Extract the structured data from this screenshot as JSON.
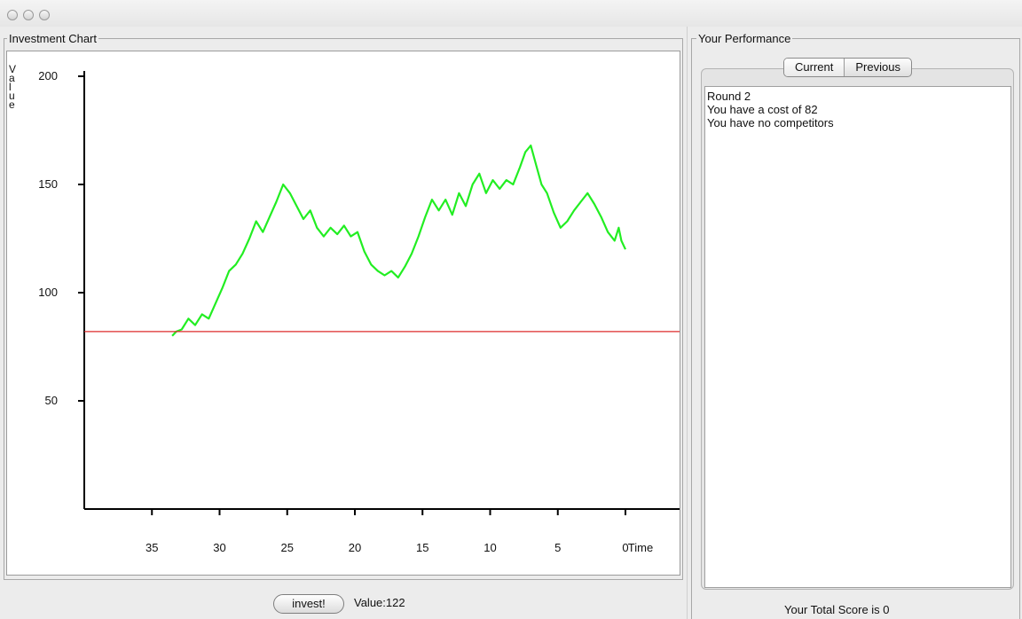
{
  "window": {
    "traffic_lights": [
      "close-light",
      "minimize-light",
      "zoom-light"
    ]
  },
  "chart_panel": {
    "title": "Investment Chart",
    "ylabel_letters": [
      "V",
      "a",
      "l",
      "u",
      "e"
    ],
    "xlabel": "Time"
  },
  "chart_data": {
    "type": "line",
    "title": "",
    "xlabel": "Time",
    "ylabel": "Value",
    "x_ticks": [
      35,
      30,
      25,
      20,
      15,
      10,
      5,
      0
    ],
    "y_ticks": [
      50,
      100,
      150,
      200
    ],
    "xlim": [
      40,
      -4
    ],
    "ylim": [
      0,
      200
    ],
    "series": [
      {
        "color": "#22ee22",
        "x": [
          33.5,
          33.2,
          32.8,
          32.3,
          31.8,
          31.3,
          30.8,
          30.3,
          29.8,
          29.3,
          28.8,
          28.3,
          27.8,
          27.3,
          26.8,
          26.3,
          25.8,
          25.3,
          24.8,
          24.3,
          23.8,
          23.3,
          22.8,
          22.3,
          21.8,
          21.3,
          20.8,
          20.3,
          19.8,
          19.3,
          18.8,
          18.3,
          17.8,
          17.3,
          16.8,
          16.3,
          15.8,
          15.3,
          14.8,
          14.3,
          13.8,
          13.3,
          12.8,
          12.3,
          11.8,
          11.3,
          10.8,
          10.3,
          9.8,
          9.3,
          8.8,
          8.3,
          7.8,
          7.4,
          7.0,
          6.6,
          6.2,
          5.8,
          5.3,
          4.8,
          4.3,
          3.8,
          3.3,
          2.8,
          2.3,
          1.8,
          1.3,
          0.8,
          0.5,
          0.3,
          0.0
        ],
        "values": [
          80,
          82,
          83,
          88,
          85,
          90,
          88,
          95,
          102,
          110,
          113,
          118,
          125,
          133,
          128,
          135,
          142,
          150,
          146,
          140,
          134,
          138,
          130,
          126,
          130,
          127,
          131,
          126,
          128,
          119,
          113,
          110,
          108,
          110,
          107,
          112,
          118,
          126,
          135,
          143,
          138,
          143,
          136,
          146,
          140,
          150,
          155,
          146,
          152,
          148,
          152,
          150,
          158,
          165,
          168,
          159,
          150,
          146,
          137,
          130,
          133,
          138,
          142,
          146,
          141,
          135,
          128,
          124,
          130,
          124,
          120
        ]
      },
      {
        "name": "",
        "color": "#dd2b2b",
        "x": [
          40,
          -4
        ],
        "values": [
          82,
          82
        ]
      }
    ]
  },
  "controls": {
    "invest_label": "invest!",
    "value_text": "Value:122"
  },
  "performance": {
    "title": "Your Performance",
    "tabs": [
      {
        "label": "Current"
      },
      {
        "label": "Previous"
      }
    ],
    "lines": [
      "Round 2",
      "You have a cost of 82",
      "You have no competitors"
    ],
    "score_text": "Your Total Score is   0"
  }
}
